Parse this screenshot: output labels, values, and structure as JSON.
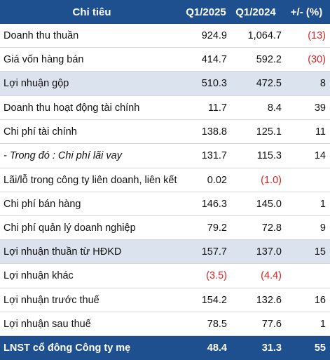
{
  "header": {
    "col_item": "Chỉ tiêu",
    "col_q1_2025": "Q1/2025",
    "col_q1_2024": "Q1/2024",
    "col_change": "+/- (%)"
  },
  "rows": [
    {
      "label": "Doanh thu thuần",
      "q1_2025": "924.9",
      "q1_2024": "1,064.7",
      "change": "(13)"
    },
    {
      "label": "Giá vốn hàng bán",
      "q1_2025": "414.7",
      "q1_2024": "592.2",
      "change": "(30)"
    },
    {
      "label": "Lợi nhuận gộp",
      "q1_2025": "510.3",
      "q1_2024": "472.5",
      "change": "8"
    },
    {
      "label": "Doanh thu hoạt động tài chính",
      "q1_2025": "11.7",
      "q1_2024": "8.4",
      "change": "39"
    },
    {
      "label": "Chi phí tài chính",
      "q1_2025": "138.8",
      "q1_2024": "125.1",
      "change": "11"
    },
    {
      "label": "- Trong đó : Chi phí lãi vay",
      "q1_2025": "131.7",
      "q1_2024": "115.3",
      "change": "14"
    },
    {
      "label": "Lãi/lỗ trong công ty liên doanh, liên kết",
      "q1_2025": "0.02",
      "q1_2024": "(1.0)",
      "change": ""
    },
    {
      "label": "Chi phí bán hàng",
      "q1_2025": "146.3",
      "q1_2024": "145.0",
      "change": "1"
    },
    {
      "label": "Chi phí quản lý doanh nghiệp",
      "q1_2025": "79.2",
      "q1_2024": "72.8",
      "change": "9"
    },
    {
      "label": "Lợi nhuận thuần từ HĐKD",
      "q1_2025": "157.7",
      "q1_2024": "137.0",
      "change": "15"
    },
    {
      "label": "Lợi nhuận khác",
      "q1_2025": "(3.5)",
      "q1_2024": "(4.4)",
      "change": ""
    },
    {
      "label": "Lợi nhuận trước thuế",
      "q1_2025": "154.2",
      "q1_2024": "132.6",
      "change": "16"
    },
    {
      "label": "Lợi nhuận sau thuế",
      "q1_2025": "78.5",
      "q1_2024": "77.6",
      "change": "1"
    },
    {
      "label": "LNST cổ đông Công ty mẹ",
      "q1_2025": "48.4",
      "q1_2024": "31.3",
      "change": "55"
    }
  ],
  "colors": {
    "header_bg": "#1e4f8f",
    "highlight_bg": "#dbe3ef",
    "negative_text": "#e02020"
  }
}
